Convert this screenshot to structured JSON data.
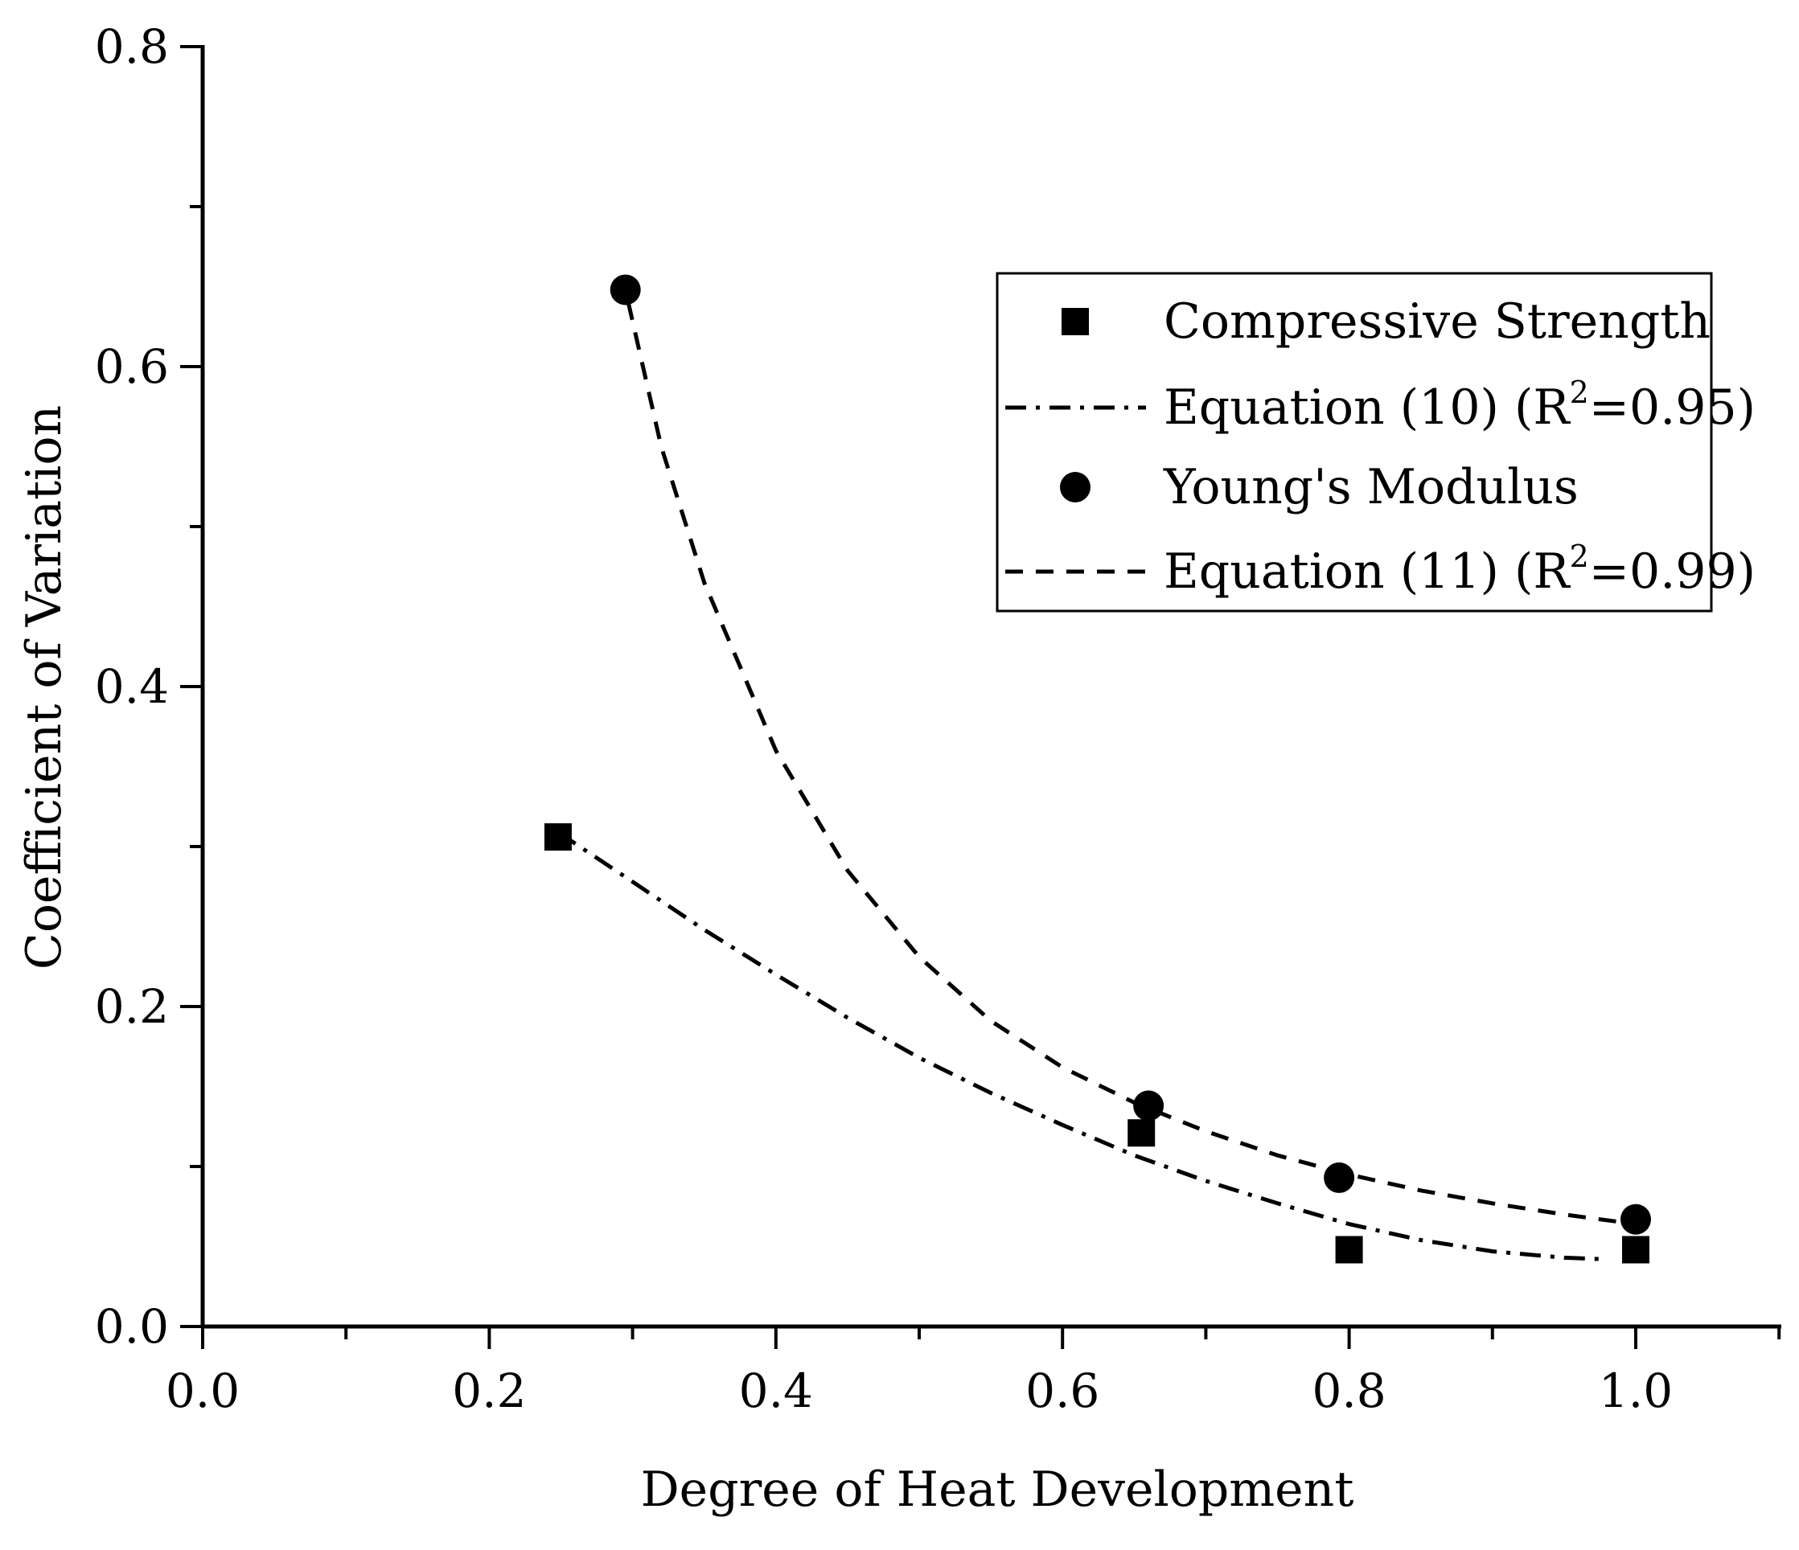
{
  "chart_data": {
    "type": "scatter",
    "xlabel": "Degree of Heat Development",
    "ylabel": "Coefficient of Variation",
    "xlim": [
      0.0,
      1.1
    ],
    "ylim": [
      0.0,
      0.8
    ],
    "x_ticks": [
      0.0,
      0.2,
      0.4,
      0.6,
      0.8,
      1.0
    ],
    "x_tick_labels": [
      "0.0",
      "0.2",
      "0.4",
      "0.6",
      "0.8",
      "1.0"
    ],
    "x_minor_ticks": [
      0.1,
      0.3,
      0.5,
      0.7,
      0.9,
      1.1
    ],
    "y_ticks": [
      0.0,
      0.2,
      0.4,
      0.6,
      0.8
    ],
    "y_tick_labels": [
      "0.0",
      "0.2",
      "0.4",
      "0.6",
      "0.8"
    ],
    "y_minor_ticks": [
      0.1,
      0.3,
      0.5,
      0.7
    ],
    "grid": false,
    "legend_position": "upper-right",
    "series": [
      {
        "name": "Compressive Strength",
        "kind": "points",
        "marker": "square",
        "x": [
          0.248,
          0.655,
          0.8,
          1.0
        ],
        "y": [
          0.306,
          0.121,
          0.048,
          0.048
        ]
      },
      {
        "name": "Equation (10) (R²=0.95)",
        "label_main": "Equation (10) (R",
        "label_sup": "2",
        "label_tail": "=0.95)",
        "kind": "line",
        "style": "dash-dot",
        "x": [
          0.248,
          0.3,
          0.35,
          0.4,
          0.45,
          0.5,
          0.55,
          0.6,
          0.65,
          0.7,
          0.75,
          0.8,
          0.85,
          0.9,
          0.95,
          0.98
        ],
        "y": [
          0.309,
          0.278,
          0.248,
          0.22,
          0.193,
          0.168,
          0.146,
          0.126,
          0.107,
          0.091,
          0.077,
          0.064,
          0.054,
          0.047,
          0.043,
          0.042
        ]
      },
      {
        "name": "Young's Modulus",
        "kind": "points",
        "marker": "circle",
        "x": [
          0.295,
          0.66,
          0.793,
          1.0
        ],
        "y": [
          0.648,
          0.138,
          0.093,
          0.067
        ]
      },
      {
        "name": "Equation (11) (R²=0.99)",
        "label_main": "Equation (11) (R",
        "label_sup": "2",
        "label_tail": "=0.99)",
        "kind": "line",
        "style": "dashed",
        "x": [
          0.297,
          0.32,
          0.35,
          0.4,
          0.45,
          0.5,
          0.55,
          0.6,
          0.65,
          0.7,
          0.75,
          0.8,
          0.85,
          0.9,
          0.95,
          1.0
        ],
        "y": [
          0.64,
          0.55,
          0.465,
          0.36,
          0.285,
          0.231,
          0.191,
          0.162,
          0.14,
          0.122,
          0.107,
          0.095,
          0.085,
          0.077,
          0.07,
          0.064
        ]
      }
    ]
  }
}
